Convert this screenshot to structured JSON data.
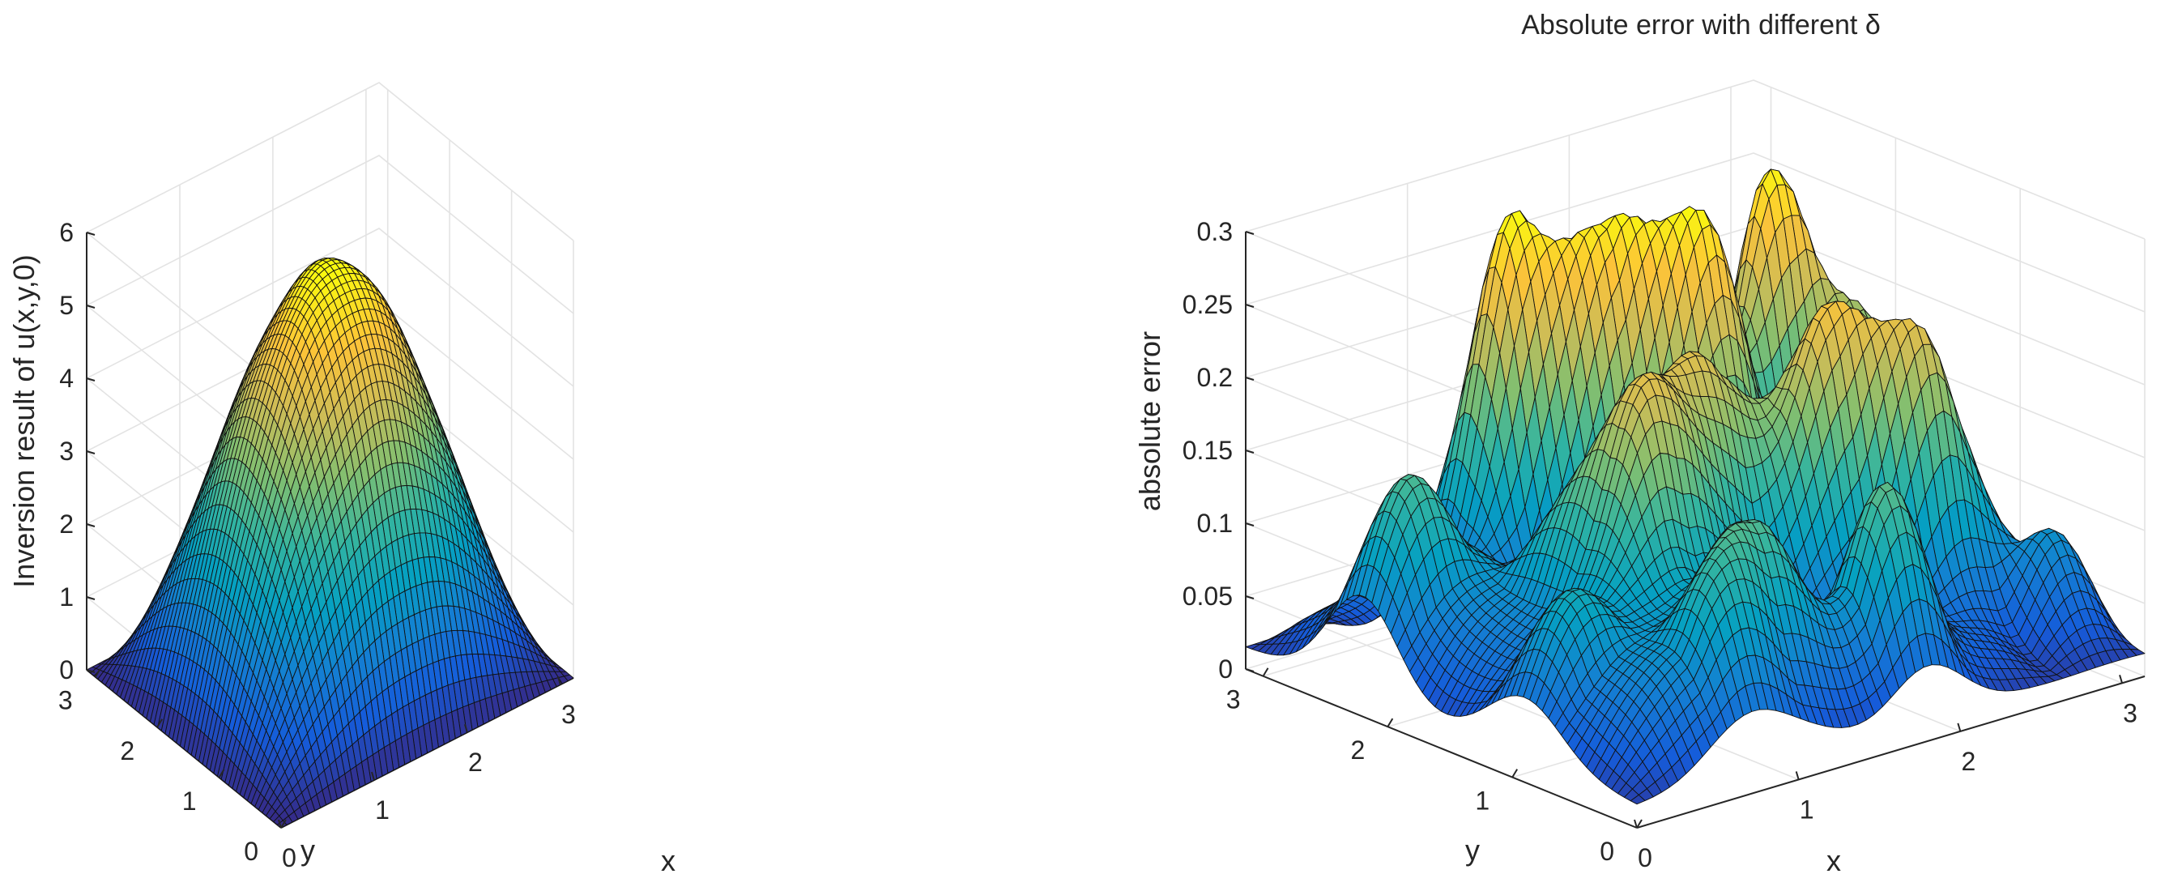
{
  "chart_data": [
    {
      "type": "surface",
      "title": "",
      "xlabel": "x",
      "ylabel": "y",
      "zlabel": "Inversion result of u(x,y,0)",
      "xlim": [
        0,
        3.14
      ],
      "ylim": [
        0,
        3.14
      ],
      "zlim": [
        0,
        6
      ],
      "xticks": [
        "0",
        "1",
        "2",
        "3"
      ],
      "yticks": [
        "0",
        "1",
        "2",
        "3"
      ],
      "zticks": [
        "0",
        "1",
        "2",
        "3",
        "4",
        "5",
        "6"
      ],
      "grid": true,
      "colormap": "parula",
      "surface": "approximately 5.6*sin(x)*sin(y) with slight ripples; peak near (1.57, 1.57, 5.6)"
    },
    {
      "type": "surface",
      "title": "Absolute error with different δ",
      "xlabel": "x",
      "ylabel": "y",
      "zlabel": "absolute error",
      "xlim": [
        0,
        3.14
      ],
      "ylim": [
        0,
        3.14
      ],
      "zlim": [
        0,
        0.3
      ],
      "xticks": [
        "0",
        "1",
        "2",
        "3"
      ],
      "yticks": [
        "0",
        "1",
        "2",
        "3"
      ],
      "zticks": [
        "0",
        "0.05",
        "0.1",
        "0.15",
        "0.2",
        "0.25",
        "0.3"
      ],
      "grid": true,
      "colormap": "parula",
      "surface": "oscillatory error field with multiple peaks; maximum about 0.29"
    }
  ],
  "colors": {
    "background": "#ffffff",
    "axis": "#262626",
    "grid": "#e3e3e3",
    "parula_low": "#352a87",
    "parula_high": "#f9fb0e"
  }
}
